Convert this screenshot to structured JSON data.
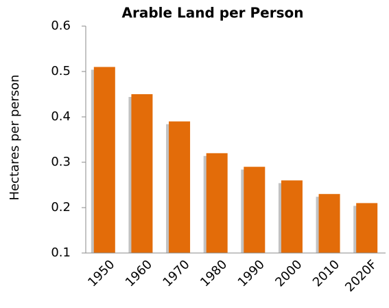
{
  "chart_data": {
    "type": "bar",
    "title": "Arable Land per Person",
    "y_label": "Hectares per person",
    "categories": [
      "1950",
      "1960",
      "1970",
      "1980",
      "1990",
      "2000",
      "2010",
      "2020F"
    ],
    "values": [
      0.51,
      0.45,
      0.39,
      0.32,
      0.29,
      0.26,
      0.23,
      0.21
    ],
    "color": "#e36c09",
    "ylim": [
      0.1,
      0.6
    ],
    "yticks": [
      0.1,
      0.2,
      0.3,
      0.4,
      0.5,
      0.6
    ],
    "grid": false
  }
}
